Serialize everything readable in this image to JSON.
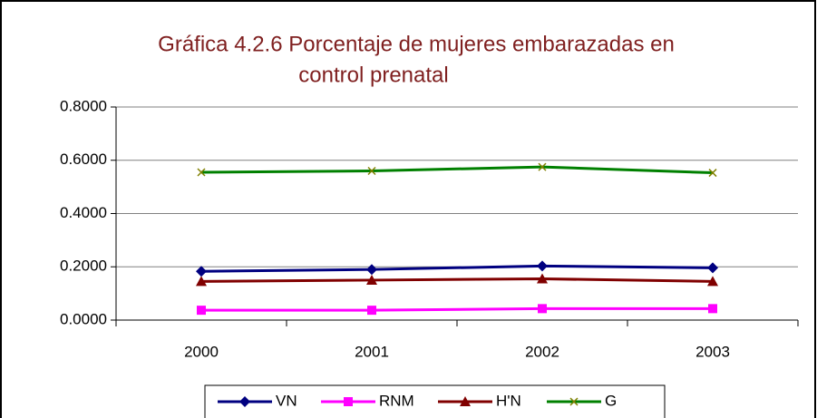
{
  "chart_data": {
    "type": "line",
    "title": [
      "Gráfica 4.2.6  Porcentaje de mujeres embarazadas en",
      "control prenatal"
    ],
    "categories": [
      "2000",
      "2001",
      "2002",
      "2003"
    ],
    "series": [
      {
        "name": "VN",
        "color": "#000080",
        "marker": "diamond",
        "values": [
          0.183,
          0.19,
          0.203,
          0.196
        ]
      },
      {
        "name": "RNM",
        "color": "#ff00ff",
        "marker": "square",
        "values": [
          0.037,
          0.037,
          0.043,
          0.043
        ]
      },
      {
        "name": "H'N",
        "color": "#800000",
        "marker": "triangle",
        "values": [
          0.145,
          0.15,
          0.155,
          0.145
        ]
      },
      {
        "name": "G",
        "color": "#008000",
        "marker": "x",
        "values": [
          0.555,
          0.56,
          0.575,
          0.553
        ]
      }
    ],
    "ylim": [
      0,
      0.8
    ],
    "yticks": [
      {
        "value": 0,
        "label": "0.0000"
      },
      {
        "value": 0.2,
        "label": "0.2000"
      },
      {
        "value": 0.4,
        "label": "0.4000"
      },
      {
        "value": 0.6,
        "label": "0.6000"
      },
      {
        "value": 0.8,
        "label": "0.8000"
      }
    ],
    "grid": true,
    "legend": "bottom"
  }
}
